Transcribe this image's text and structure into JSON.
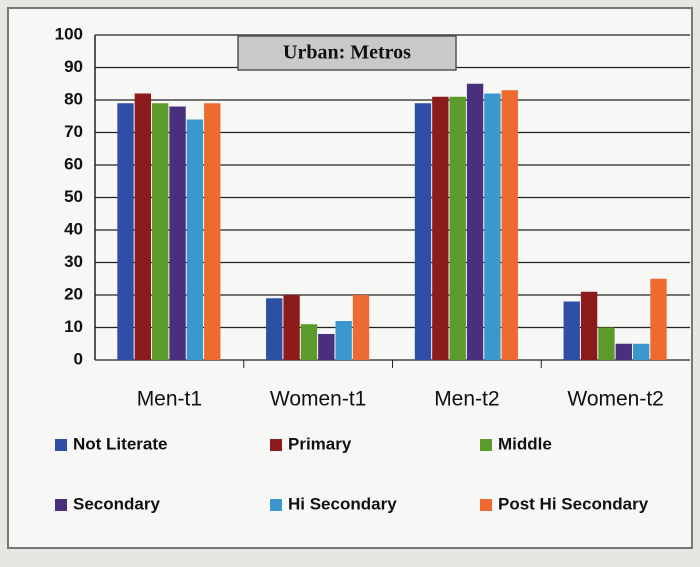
{
  "chart_data": {
    "type": "bar",
    "title": "Urban: Metros",
    "categories": [
      "Men-t1",
      "Women-t1",
      "Men-t2",
      "Women-t2"
    ],
    "series": [
      {
        "name": "Not Literate",
        "color": "#2f4fa6",
        "values": [
          79,
          19,
          79,
          18
        ]
      },
      {
        "name": "Primary",
        "color": "#8c1c1c",
        "values": [
          82,
          20,
          81,
          21
        ]
      },
      {
        "name": "Middle",
        "color": "#5c9a2c",
        "values": [
          79,
          11,
          81,
          10
        ]
      },
      {
        "name": "Secondary",
        "color": "#4a2f7c",
        "values": [
          78,
          8,
          85,
          5
        ]
      },
      {
        "name": "Hi Secondary",
        "color": "#3a98cf",
        "values": [
          74,
          12,
          82,
          5
        ]
      },
      {
        "name": "Post Hi Secondary",
        "color": "#ee6a30",
        "values": [
          79,
          20,
          83,
          25
        ]
      }
    ],
    "ylim": [
      0,
      100
    ],
    "yticks": [
      0,
      10,
      20,
      30,
      40,
      50,
      60,
      70,
      80,
      90,
      100
    ],
    "grid": true
  }
}
